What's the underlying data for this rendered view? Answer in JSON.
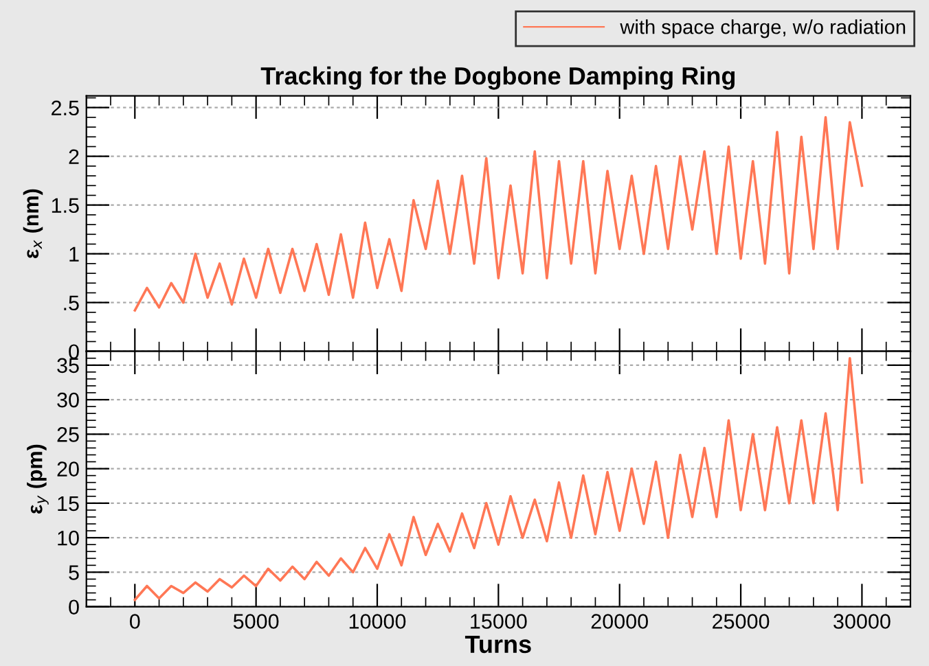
{
  "chart_data": [
    {
      "type": "line",
      "title": "Tracking for the Dogbone Damping Ring",
      "ylabel": "ε$_{x}$ (nm)",
      "legend": "top right",
      "grid": "y",
      "tick_labels": "y",
      "xlim": [
        -2000,
        32000
      ],
      "xticks": [
        0,
        5000,
        10000,
        15000,
        20000,
        25000,
        30000
      ],
      "ylim": [
        0,
        2.62
      ],
      "yticks": [
        0,
        {
          "value": 0.5,
          "label": ".5"
        },
        1,
        1.5,
        2,
        2.5
      ],
      "x": [
        0,
        500,
        1000,
        1500,
        2000,
        2500,
        3000,
        3500,
        4000,
        4500,
        5000,
        5500,
        6000,
        6500,
        7000,
        7500,
        8000,
        8500,
        9000,
        9500,
        10000,
        10500,
        11000,
        11500,
        12000,
        12500,
        13000,
        13500,
        14000,
        14500,
        15000,
        15500,
        16000,
        16500,
        17000,
        17500,
        18000,
        18500,
        19000,
        19500,
        20000,
        20500,
        21000,
        21500,
        22000,
        22500,
        23000,
        23500,
        24000,
        24500,
        25000,
        25500,
        26000,
        26500,
        27000,
        27500,
        28000,
        28500,
        29000,
        29500,
        30000
      ],
      "series": [
        {
          "name": "with space charge, w/o radiation",
          "color": "#ff7755",
          "values": [
            0.42,
            0.65,
            0.45,
            0.7,
            0.5,
            1.0,
            0.55,
            0.9,
            0.48,
            0.95,
            0.55,
            1.05,
            0.6,
            1.05,
            0.62,
            1.1,
            0.58,
            1.2,
            0.55,
            1.32,
            0.65,
            1.15,
            0.62,
            1.55,
            1.05,
            1.75,
            1.0,
            1.8,
            0.9,
            1.98,
            0.75,
            1.7,
            0.8,
            2.05,
            0.75,
            1.95,
            0.9,
            1.95,
            0.8,
            1.85,
            1.05,
            1.8,
            1.0,
            1.9,
            1.05,
            2.0,
            1.25,
            2.05,
            1.0,
            2.1,
            0.95,
            1.95,
            0.9,
            2.25,
            0.8,
            2.2,
            1.05,
            2.4,
            1.05,
            2.35,
            1.7
          ]
        }
      ]
    },
    {
      "type": "line",
      "xlabel": "Turns",
      "ylabel": "ε$_{y}$ (pm)",
      "grid": "y",
      "xlim": [
        -2000,
        32000
      ],
      "xticks": [
        0,
        5000,
        10000,
        15000,
        20000,
        25000,
        30000
      ],
      "ylim": [
        0,
        37
      ],
      "yticks": [
        0,
        5,
        10,
        15,
        20,
        25,
        30,
        35
      ],
      "x": [
        0,
        500,
        1000,
        1500,
        2000,
        2500,
        3000,
        3500,
        4000,
        4500,
        5000,
        5500,
        6000,
        6500,
        7000,
        7500,
        8000,
        8500,
        9000,
        9500,
        10000,
        10500,
        11000,
        11500,
        12000,
        12500,
        13000,
        13500,
        14000,
        14500,
        15000,
        15500,
        16000,
        16500,
        17000,
        17500,
        18000,
        18500,
        19000,
        19500,
        20000,
        20500,
        21000,
        21500,
        22000,
        22500,
        23000,
        23500,
        24000,
        24500,
        25000,
        25500,
        26000,
        26500,
        27000,
        27500,
        28000,
        28500,
        29000,
        29500,
        30000
      ],
      "series": [
        {
          "color": "#ff7755",
          "values": [
            1,
            3,
            1.2,
            3,
            2,
            3.5,
            2.2,
            4,
            2.8,
            4.5,
            3,
            5.5,
            3.8,
            5.8,
            4,
            6.5,
            4.5,
            7,
            5,
            8.5,
            5.5,
            10.5,
            6,
            13,
            7.5,
            12,
            8,
            13.5,
            8.5,
            15,
            9,
            16,
            10,
            15.5,
            9.5,
            18,
            10,
            19,
            10.5,
            19.5,
            11,
            20,
            12,
            21,
            10,
            22,
            13,
            23,
            13,
            27,
            14,
            25,
            14,
            26,
            15,
            27,
            15,
            28,
            14,
            36,
            18
          ]
        }
      ]
    }
  ]
}
